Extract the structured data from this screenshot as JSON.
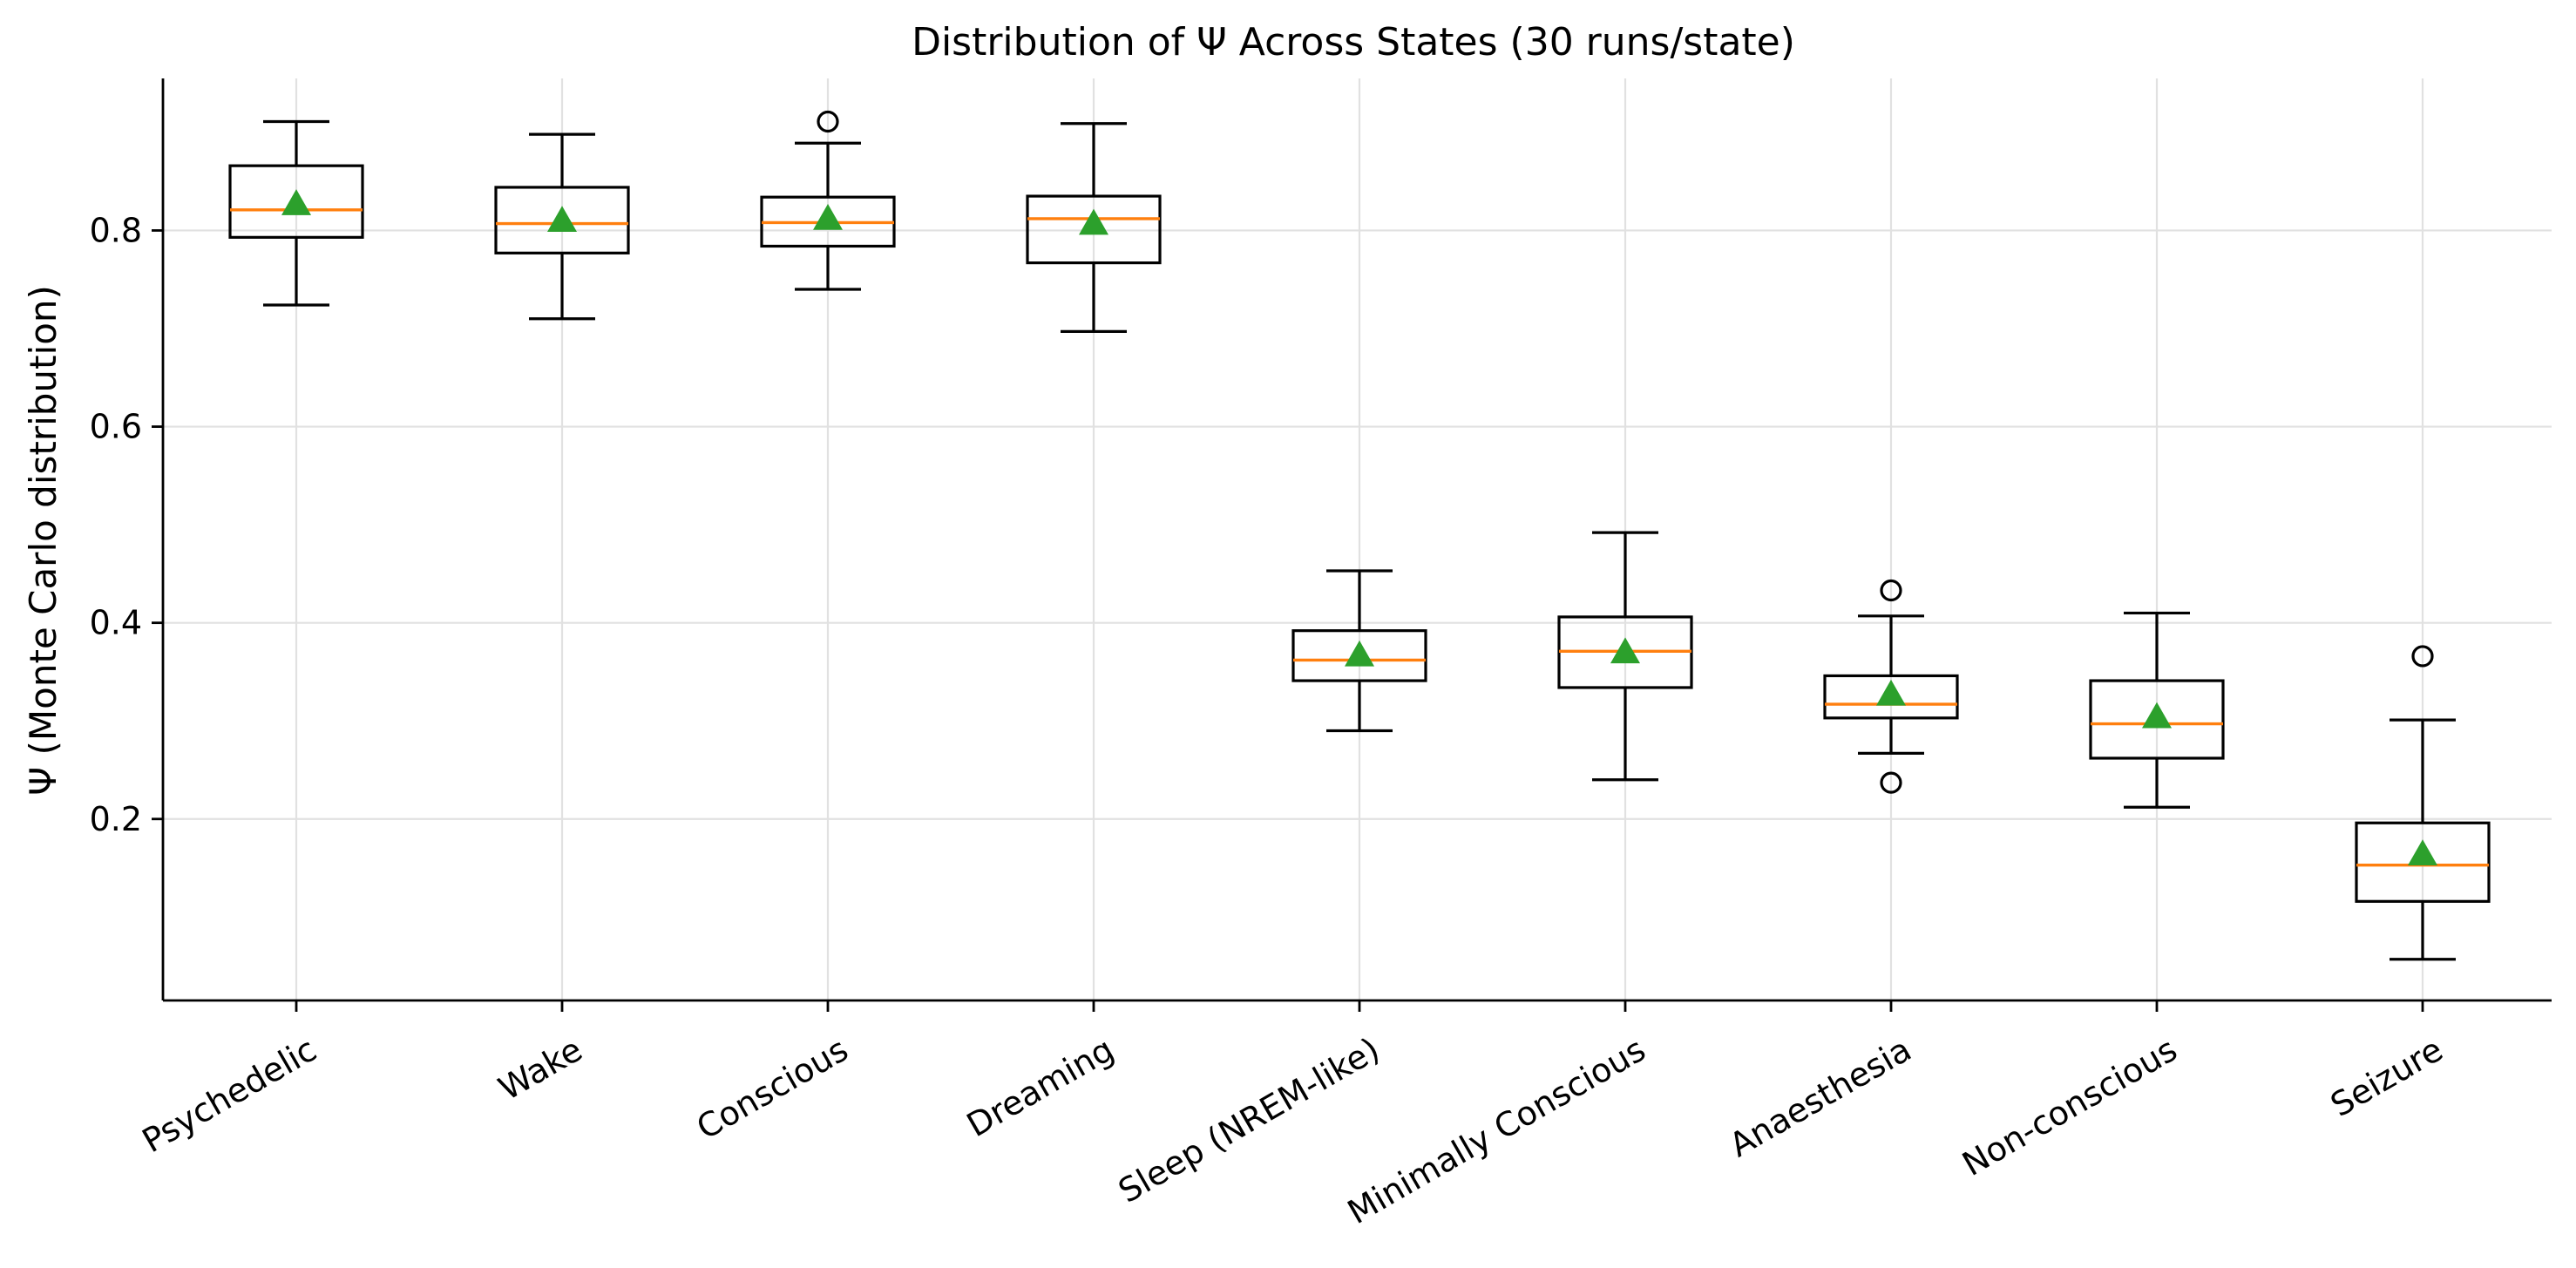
{
  "chart_data": {
    "type": "box",
    "title": "Distribution of Ψ Across States (30 runs/state)",
    "xlabel": "",
    "ylabel": "Ψ (Monte Carlo distribution)",
    "ylim": [
      0.015,
      0.955
    ],
    "yticks": [
      0.2,
      0.4,
      0.6,
      0.8
    ],
    "ytick_labels": [
      "0.2",
      "0.4",
      "0.6",
      "0.8"
    ],
    "grid": true,
    "x_tick_rotation": 30,
    "colors": {
      "box": "#000000",
      "median": "#ff7f0e",
      "mean": "#2ca02c",
      "grid": "#e1e1e1"
    },
    "categories": [
      "Psychedelic",
      "Wake",
      "Conscious",
      "Dreaming",
      "Sleep (NREM-like)",
      "Minimally Conscious",
      "Anaesthesia",
      "Non-conscious",
      "Seizure"
    ],
    "boxes": [
      {
        "whisker_low": 0.724,
        "q1": 0.793,
        "median": 0.821,
        "q3": 0.866,
        "whisker_high": 0.911,
        "mean": 0.827,
        "fliers": []
      },
      {
        "whisker_low": 0.71,
        "q1": 0.777,
        "median": 0.807,
        "q3": 0.844,
        "whisker_high": 0.898,
        "mean": 0.81,
        "fliers": []
      },
      {
        "whisker_low": 0.74,
        "q1": 0.784,
        "median": 0.808,
        "q3": 0.834,
        "whisker_high": 0.889,
        "mean": 0.812,
        "fliers": [
          0.911
        ]
      },
      {
        "whisker_low": 0.697,
        "q1": 0.767,
        "median": 0.812,
        "q3": 0.835,
        "whisker_high": 0.909,
        "mean": 0.807,
        "fliers": []
      },
      {
        "whisker_low": 0.29,
        "q1": 0.341,
        "median": 0.362,
        "q3": 0.392,
        "whisker_high": 0.453,
        "mean": 0.367,
        "fliers": []
      },
      {
        "whisker_low": 0.24,
        "q1": 0.334,
        "median": 0.371,
        "q3": 0.406,
        "whisker_high": 0.492,
        "mean": 0.37,
        "fliers": []
      },
      {
        "whisker_low": 0.267,
        "q1": 0.303,
        "median": 0.317,
        "q3": 0.346,
        "whisker_high": 0.407,
        "mean": 0.327,
        "fliers": [
          0.433,
          0.237
        ]
      },
      {
        "whisker_low": 0.212,
        "q1": 0.262,
        "median": 0.297,
        "q3": 0.341,
        "whisker_high": 0.41,
        "mean": 0.304,
        "fliers": []
      },
      {
        "whisker_low": 0.057,
        "q1": 0.116,
        "median": 0.153,
        "q3": 0.196,
        "whisker_high": 0.301,
        "mean": 0.164,
        "fliers": [
          0.366
        ]
      }
    ]
  }
}
